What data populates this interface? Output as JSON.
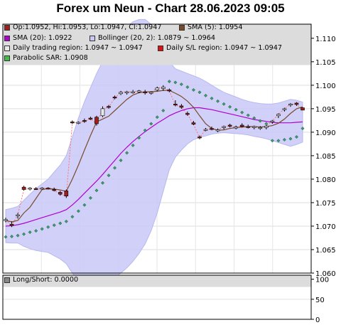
{
  "title": "Forex um Neun - Chart 28.06.2023 09:05",
  "legend": {
    "ohlc": "Op:1.0952, Hi:1.0953, Lo:1.0947, Cl:1.0947",
    "sma5": "SMA (5): 1.0954",
    "sma20": "SMA (20): 1.0922",
    "bollinger": "Bollinger (20, 2): 1.0879 ~ 1.0964",
    "daily_trading": "Daily trading region: 1.0947 ~ 1.0947",
    "daily_sl": "Daily S/L region: 1.0947 ~ 1.0947",
    "psar": "Parabolic SAR: 1.0908"
  },
  "long_short_legend": "Long/Short: 0.0000",
  "colors": {
    "bollinger_fill": "#c8c8f8",
    "sma5": "#7a4a2a",
    "sma20": "#b000d0",
    "psar": "#207a50",
    "bull": "#e8e8e8",
    "bear": "#a02020",
    "daily_sl": "#ff7070",
    "panel_header": "#dcdcdc"
  },
  "chart_data": [
    {
      "type": "candlestick",
      "title": "Forex um Neun - Chart 28.06.2023 09:05",
      "ylim": [
        1.06,
        1.113
      ],
      "y_ticks": [
        "1.110",
        "1.105",
        "1.100",
        "1.095",
        "1.090",
        "1.085",
        "1.080",
        "1.075",
        "1.070",
        "1.065",
        "1.060"
      ],
      "y_tick_values": [
        1.11,
        1.105,
        1.1,
        1.095,
        1.09,
        1.085,
        1.08,
        1.075,
        1.07,
        1.065,
        1.06
      ],
      "grid": true,
      "candles": [
        {
          "o": 1.0712,
          "h": 1.0718,
          "l": 1.0708,
          "c": 1.0714
        },
        {
          "o": 1.0704,
          "h": 1.071,
          "l": 1.0698,
          "c": 1.0701
        },
        {
          "o": 1.0722,
          "h": 1.0728,
          "l": 1.0716,
          "c": 1.0724
        },
        {
          "o": 1.0783,
          "h": 1.0786,
          "l": 1.0776,
          "c": 1.0778
        },
        {
          "o": 1.078,
          "h": 1.0783,
          "l": 1.0776,
          "c": 1.0781
        },
        {
          "o": 1.078,
          "h": 1.0783,
          "l": 1.0777,
          "c": 1.0779
        },
        {
          "o": 1.078,
          "h": 1.0783,
          "l": 1.0777,
          "c": 1.0781
        },
        {
          "o": 1.0781,
          "h": 1.0783,
          "l": 1.0778,
          "c": 1.078
        },
        {
          "o": 1.0778,
          "h": 1.0782,
          "l": 1.0774,
          "c": 1.0776
        },
        {
          "o": 1.0772,
          "h": 1.0775,
          "l": 1.0765,
          "c": 1.0768
        },
        {
          "o": 1.0775,
          "h": 1.0778,
          "l": 1.076,
          "c": 1.0764
        },
        {
          "o": 1.0922,
          "h": 1.0925,
          "l": 1.0918,
          "c": 1.092
        },
        {
          "o": 1.092,
          "h": 1.0923,
          "l": 1.0917,
          "c": 1.0921
        },
        {
          "o": 1.0925,
          "h": 1.0929,
          "l": 1.092,
          "c": 1.0923
        },
        {
          "o": 1.093,
          "h": 1.0933,
          "l": 1.0926,
          "c": 1.0928
        },
        {
          "o": 1.0932,
          "h": 1.0935,
          "l": 1.0914,
          "c": 1.0918
        },
        {
          "o": 1.0935,
          "h": 1.0955,
          "l": 1.0932,
          "c": 1.095
        },
        {
          "o": 1.0955,
          "h": 1.0958,
          "l": 1.095,
          "c": 1.0953
        },
        {
          "o": 1.0975,
          "h": 1.0978,
          "l": 1.097,
          "c": 1.0973
        },
        {
          "o": 1.0982,
          "h": 1.0988,
          "l": 1.0979,
          "c": 1.0985
        },
        {
          "o": 1.0984,
          "h": 1.0988,
          "l": 1.098,
          "c": 1.0986
        },
        {
          "o": 1.0985,
          "h": 1.099,
          "l": 1.0982,
          "c": 1.0986
        },
        {
          "o": 1.0987,
          "h": 1.099,
          "l": 1.0983,
          "c": 1.0988
        },
        {
          "o": 1.0986,
          "h": 1.099,
          "l": 1.098,
          "c": 1.0984
        },
        {
          "o": 1.0983,
          "h": 1.0987,
          "l": 1.098,
          "c": 1.0985
        },
        {
          "o": 1.099,
          "h": 1.0997,
          "l": 1.0987,
          "c": 1.0994
        },
        {
          "o": 1.0993,
          "h": 1.1,
          "l": 1.0988,
          "c": 1.0996
        },
        {
          "o": 1.099,
          "h": 1.0993,
          "l": 1.0985,
          "c": 1.0988
        },
        {
          "o": 1.096,
          "h": 1.0968,
          "l": 1.0955,
          "c": 1.0958
        },
        {
          "o": 1.0956,
          "h": 1.096,
          "l": 1.095,
          "c": 1.0953
        },
        {
          "o": 1.094,
          "h": 1.0944,
          "l": 1.0935,
          "c": 1.0938
        },
        {
          "o": 1.092,
          "h": 1.0924,
          "l": 1.0915,
          "c": 1.0917
        },
        {
          "o": 1.089,
          "h": 1.0893,
          "l": 1.0885,
          "c": 1.0888
        },
        {
          "o": 1.0905,
          "h": 1.0909,
          "l": 1.0902,
          "c": 1.0906
        },
        {
          "o": 1.0908,
          "h": 1.0912,
          "l": 1.0904,
          "c": 1.0907
        },
        {
          "o": 1.0904,
          "h": 1.0908,
          "l": 1.09,
          "c": 1.0905
        },
        {
          "o": 1.091,
          "h": 1.0914,
          "l": 1.0906,
          "c": 1.0912
        },
        {
          "o": 1.0915,
          "h": 1.0918,
          "l": 1.091,
          "c": 1.0913
        },
        {
          "o": 1.091,
          "h": 1.0914,
          "l": 1.0906,
          "c": 1.0911
        },
        {
          "o": 1.0915,
          "h": 1.0919,
          "l": 1.091,
          "c": 1.0912
        },
        {
          "o": 1.0912,
          "h": 1.0916,
          "l": 1.0908,
          "c": 1.0911
        },
        {
          "o": 1.091,
          "h": 1.0914,
          "l": 1.0906,
          "c": 1.0912
        },
        {
          "o": 1.0908,
          "h": 1.0913,
          "l": 1.0905,
          "c": 1.091
        },
        {
          "o": 1.091,
          "h": 1.0915,
          "l": 1.0906,
          "c": 1.0913
        },
        {
          "o": 1.0922,
          "h": 1.0926,
          "l": 1.0918,
          "c": 1.0924
        },
        {
          "o": 1.0935,
          "h": 1.094,
          "l": 1.093,
          "c": 1.0938
        },
        {
          "o": 1.0948,
          "h": 1.0952,
          "l": 1.0944,
          "c": 1.095
        },
        {
          "o": 1.0958,
          "h": 1.0962,
          "l": 1.0954,
          "c": 1.096
        },
        {
          "o": 1.0962,
          "h": 1.0964,
          "l": 1.0956,
          "c": 1.0959
        },
        {
          "o": 1.0952,
          "h": 1.0953,
          "l": 1.0947,
          "c": 1.0947
        }
      ],
      "sma5": [
        1.0712,
        1.0709,
        1.0712,
        1.0728,
        1.074,
        1.0759,
        1.0778,
        1.078,
        1.0779,
        1.0777,
        1.0774,
        1.08,
        1.083,
        1.0862,
        1.0893,
        1.0922,
        1.0928,
        1.0934,
        1.0946,
        1.0958,
        1.097,
        1.0979,
        1.0984,
        1.0986,
        1.0986,
        1.0987,
        1.0989,
        1.0989,
        1.0983,
        1.0976,
        1.0966,
        1.0953,
        1.0935,
        1.0918,
        1.0908,
        1.0904,
        1.0905,
        1.0908,
        1.091,
        1.0911,
        1.0912,
        1.0912,
        1.0911,
        1.0912,
        1.0914,
        1.0919,
        1.0928,
        1.094,
        1.095,
        1.0954
      ],
      "sma20": [
        1.07,
        1.0701,
        1.0703,
        1.0706,
        1.071,
        1.0714,
        1.0718,
        1.0722,
        1.0726,
        1.073,
        1.0735,
        1.0745,
        1.0757,
        1.077,
        1.0783,
        1.0796,
        1.081,
        1.0825,
        1.084,
        1.0855,
        1.0868,
        1.088,
        1.0891,
        1.0901,
        1.091,
        1.0919,
        1.0927,
        1.0935,
        1.0941,
        1.0946,
        1.095,
        1.0952,
        1.0952,
        1.095,
        1.0948,
        1.0945,
        1.0942,
        1.0939,
        1.0936,
        1.0933,
        1.093,
        1.0927,
        1.0925,
        1.0923,
        1.0921,
        1.092,
        1.092,
        1.092,
        1.0921,
        1.0922
      ],
      "bb_upper": [
        1.0735,
        1.0738,
        1.0742,
        1.0755,
        1.0768,
        1.078,
        1.079,
        1.08,
        1.0815,
        1.083,
        1.085,
        1.089,
        1.093,
        1.0965,
        1.0995,
        1.1025,
        1.105,
        1.107,
        1.109,
        1.111,
        1.1125,
        1.1135,
        1.114,
        1.114,
        1.113,
        1.111,
        1.108,
        1.105,
        1.1035,
        1.103,
        1.1025,
        1.102,
        1.1015,
        1.1008,
        1.1,
        1.0992,
        1.0985,
        1.098,
        1.0975,
        1.097,
        1.0966,
        1.0963,
        1.0961,
        1.096,
        1.096,
        1.0962,
        1.0966,
        1.097,
        1.0968,
        1.0964
      ],
      "bb_lower": [
        1.0665,
        1.0664,
        1.0664,
        1.0657,
        1.0652,
        1.0648,
        1.0646,
        1.0644,
        1.0637,
        1.063,
        1.062,
        1.06,
        1.0584,
        1.0575,
        1.0571,
        1.0567,
        1.057,
        1.058,
        1.059,
        1.06,
        1.0611,
        1.0625,
        1.0642,
        1.0662,
        1.069,
        1.0728,
        1.0774,
        1.082,
        1.0847,
        1.0862,
        1.0875,
        1.0884,
        1.0889,
        1.0892,
        1.0896,
        1.0898,
        1.0899,
        1.0898,
        1.0897,
        1.0896,
        1.0894,
        1.0891,
        1.0889,
        1.0886,
        1.0882,
        1.0878,
        1.0874,
        1.087,
        1.0874,
        1.0879
      ],
      "psar": [
        1.0677,
        1.0678,
        1.068,
        1.0683,
        1.0687,
        1.069,
        1.0694,
        1.0698,
        1.0702,
        1.0706,
        1.071,
        1.072,
        1.0732,
        1.0745,
        1.076,
        1.0776,
        1.0792,
        1.0808,
        1.0824,
        1.084,
        1.0856,
        1.0872,
        1.0888,
        1.0904,
        1.0918,
        1.0932,
        1.0946,
        1.1008,
        1.1006,
        1.1002,
        1.0996,
        1.099,
        1.0985,
        1.0978,
        1.0972,
        1.0966,
        1.096,
        1.0954,
        1.0948,
        1.0942,
        1.0936,
        1.093,
        1.0924,
        1.0918,
        1.0882,
        1.0882,
        1.0884,
        1.0886,
        1.089,
        1.0908
      ]
    },
    {
      "type": "bar",
      "title": "Long/Short: 0.0000",
      "ylim": [
        0,
        110
      ],
      "y_ticks": [
        "100",
        "50",
        "0"
      ],
      "y_tick_values": [
        100,
        50,
        0
      ],
      "grid": true,
      "values": [
        0
      ]
    }
  ]
}
